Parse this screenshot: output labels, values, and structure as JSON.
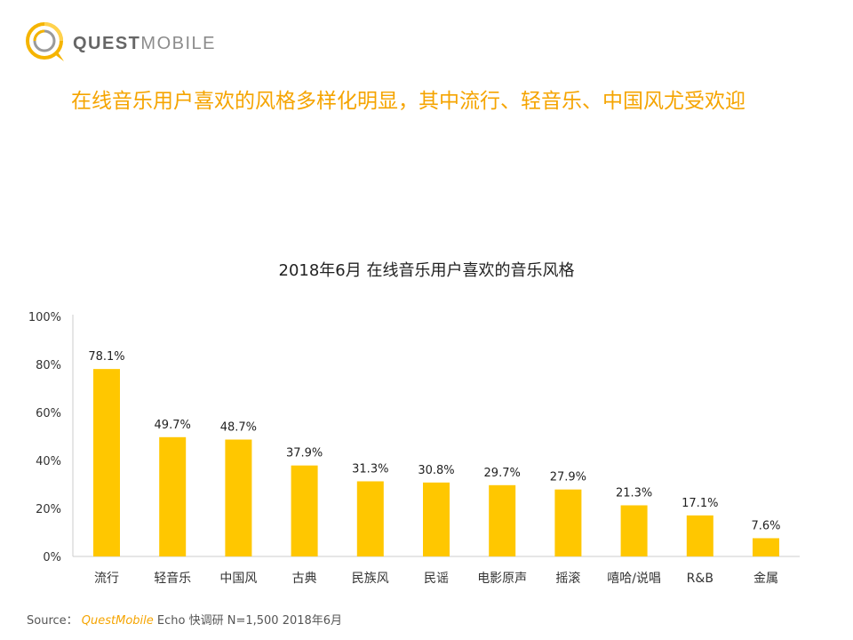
{
  "brand": {
    "name_bold": "QUEST",
    "name_light": "MOBILE"
  },
  "headline": "在线音乐用户喜欢的风格多样化明显，其中流行、轻音乐、中国风尤受欢迎",
  "colors": {
    "accent": "#f5a400",
    "bar": "#ffc700",
    "axis": "#cccccc"
  },
  "chart_data": {
    "type": "bar",
    "title": "2018年6月 在线音乐用户喜欢的音乐风格",
    "categories": [
      "流行",
      "轻音乐",
      "中国风",
      "古典",
      "民族风",
      "民谣",
      "电影原声",
      "摇滚",
      "嘻哈/说唱",
      "R&B",
      "金属"
    ],
    "values": [
      78.1,
      49.7,
      48.7,
      37.9,
      31.3,
      30.8,
      29.7,
      27.9,
      21.3,
      17.1,
      7.6
    ],
    "data_labels": [
      "78.1%",
      "49.7%",
      "48.7%",
      "37.9%",
      "31.3%",
      "30.8%",
      "29.7%",
      "27.9%",
      "21.3%",
      "17.1%",
      "7.6%"
    ],
    "yticks": [
      0,
      20,
      40,
      60,
      80,
      100
    ],
    "ytick_labels": [
      "0%",
      "20%",
      "40%",
      "60%",
      "80%",
      "100%"
    ],
    "ylim": [
      0,
      100
    ],
    "grid": false,
    "legend": "none"
  },
  "source": {
    "label": "Source：",
    "brand": "QuestMobile",
    "text": " Echo 快调研 N=1,500 2018年6月"
  }
}
